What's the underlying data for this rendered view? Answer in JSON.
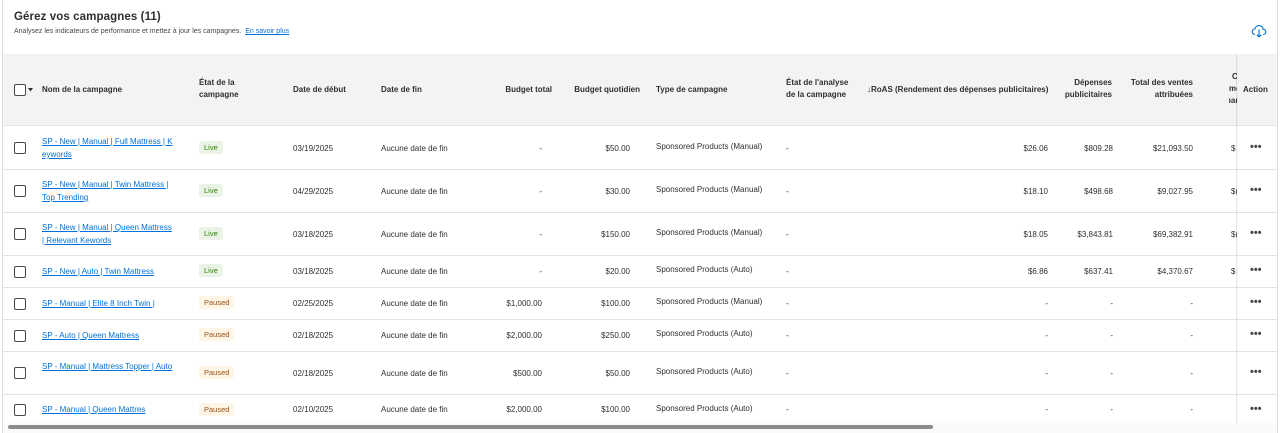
{
  "header": {
    "title": "Gérez vos campagnes (11)",
    "subtitle": "Analysez les indicateurs de performance et mettez à jour les campagnes.",
    "learn_more": "En savoir plus"
  },
  "icons": {
    "download": "cloud-download-icon",
    "row_menu": "more-horizontal-icon",
    "sort": "arrow-down-icon"
  },
  "colors": {
    "link": "#0071dc",
    "live_bg": "#eaf3e6",
    "live_text": "#2a8703",
    "paused_bg": "#fff5e6",
    "paused_text": "#995213"
  },
  "table": {
    "columns": {
      "name": "Nom de la campagne",
      "state_1": "État de la",
      "state_2": "campagne",
      "start": "Date de début",
      "end": "Date de fin",
      "budget_total": "Budget total",
      "budget_daily": "Budget quotidien",
      "type": "Type de campagne",
      "analysis_1": "État de l'analyse",
      "analysis_2": "de la campagne",
      "roas": "↓RoAS (Rendement des dépenses publicitaires)",
      "spend_1": "Dépenses",
      "spend_2": "publicitaires",
      "sales_1": "Total des ventes",
      "sales_2": "attribuées",
      "clipped_1": "C",
      "clipped_2": "mo",
      "clipped_3": "par",
      "action": "Action"
    },
    "rows": [
      {
        "name": "SP - New | Manual | Full Mattress | Keywords",
        "status": "Live",
        "start": "03/19/2025",
        "end": "Aucune date de fin",
        "budget_total": "-",
        "budget_daily": "$50.00",
        "type": "Sponsored Products (Manual)",
        "analysis": "-",
        "roas": "$26.06",
        "spend": "$809.28",
        "sales": "$21,093.50",
        "clipped": "$"
      },
      {
        "name": "SP - New | Manual | Twin Mattress | Top Trending",
        "status": "Live",
        "start": "04/29/2025",
        "end": "Aucune date de fin",
        "budget_total": "-",
        "budget_daily": "$30.00",
        "type": "Sponsored Products (Manual)",
        "analysis": "-",
        "roas": "$18.10",
        "spend": "$498.68",
        "sales": "$9,027.95",
        "clipped": "$("
      },
      {
        "name": "SP - New | Manual | Queen Mattress | Relevant Kewords",
        "status": "Live",
        "start": "03/18/2025",
        "end": "Aucune date de fin",
        "budget_total": "-",
        "budget_daily": "$150.00",
        "type": "Sponsored Products (Manual)",
        "analysis": "-",
        "roas": "$18.05",
        "spend": "$3,843.81",
        "sales": "$69,382.91",
        "clipped": "$("
      },
      {
        "name": "SP - New | Auto | Twin Mattress",
        "status": "Live",
        "start": "03/18/2025",
        "end": "Aucune date de fin",
        "budget_total": "-",
        "budget_daily": "$20.00",
        "type": "Sponsored Products (Auto)",
        "analysis": "-",
        "roas": "$6.86",
        "spend": "$637.41",
        "sales": "$4,370.67",
        "clipped": "$"
      },
      {
        "name": "SP - Manual | Elite 8 Inch Twin |",
        "status": "Paused",
        "start": "02/25/2025",
        "end": "Aucune date de fin",
        "budget_total": "$1,000.00",
        "budget_daily": "$100.00",
        "type": "Sponsored Products (Manual)",
        "analysis": "-",
        "roas": "-",
        "spend": "-",
        "sales": "-",
        "clipped": ""
      },
      {
        "name": "SP - Auto | Queen Mattress",
        "status": "Paused",
        "start": "02/18/2025",
        "end": "Aucune date de fin",
        "budget_total": "$2,000.00",
        "budget_daily": "$250.00",
        "type": "Sponsored Products (Auto)",
        "analysis": "-",
        "roas": "-",
        "spend": "-",
        "sales": "-",
        "clipped": ""
      },
      {
        "name": "SP - Manual | Mattress Topper | Auto",
        "status": "Paused",
        "start": "02/18/2025",
        "end": "Aucune date de fin",
        "budget_total": "$500.00",
        "budget_daily": "$50.00",
        "type": "Sponsored Products (Auto)",
        "analysis": "-",
        "roas": "-",
        "spend": "-",
        "sales": "-",
        "clipped": ""
      },
      {
        "name": "SP - Manual | Queen Mattres",
        "status": "Paused",
        "start": "02/10/2025",
        "end": "Aucune date de fin",
        "budget_total": "$2,000.00",
        "budget_daily": "$100.00",
        "type": "Sponsored Products (Auto)",
        "analysis": "-",
        "roas": "-",
        "spend": "-",
        "sales": "-",
        "clipped": ""
      }
    ],
    "row_menu_label": "•••"
  }
}
